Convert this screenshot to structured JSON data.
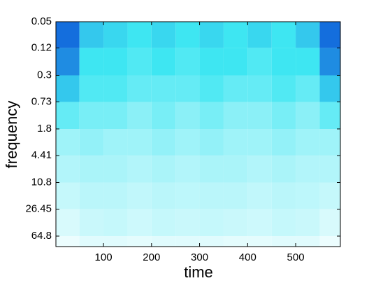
{
  "chart_data": {
    "type": "heatmap",
    "xlabel": "time",
    "ylabel": "frequency",
    "xlim": [
      1,
      593
    ],
    "xticks": [
      100,
      200,
      300,
      400,
      500
    ],
    "ylim": [
      0.05,
      92
    ],
    "yscale": "log",
    "y_reversed": true,
    "yticks": [
      0.05,
      0.12,
      0.3,
      0.73,
      1.8,
      4.41,
      10.8,
      26.45,
      64.8
    ],
    "x_edges": [
      1,
      50,
      100,
      150,
      200,
      250,
      300,
      350,
      400,
      450,
      500,
      550,
      593
    ],
    "y_edges": [
      0.05,
      0.12,
      0.3,
      0.73,
      1.8,
      4.41,
      10.8,
      26.45,
      64.8,
      92
    ],
    "clim": [
      0,
      1
    ],
    "colormap": [
      "#ffffff",
      "#3ee6f2",
      "#0a50d8"
    ],
    "values": [
      [
        0.9,
        0.6,
        0.55,
        0.5,
        0.55,
        0.5,
        0.55,
        0.5,
        0.55,
        0.5,
        0.6,
        0.9
      ],
      [
        0.8,
        0.5,
        0.5,
        0.45,
        0.5,
        0.45,
        0.5,
        0.5,
        0.45,
        0.5,
        0.5,
        0.8
      ],
      [
        0.6,
        0.45,
        0.45,
        0.4,
        0.4,
        0.4,
        0.45,
        0.4,
        0.4,
        0.45,
        0.4,
        0.6
      ],
      [
        0.4,
        0.35,
        0.35,
        0.3,
        0.35,
        0.3,
        0.35,
        0.3,
        0.3,
        0.35,
        0.3,
        0.4
      ],
      [
        0.25,
        0.28,
        0.25,
        0.25,
        0.28,
        0.25,
        0.28,
        0.25,
        0.25,
        0.28,
        0.25,
        0.25
      ],
      [
        0.2,
        0.22,
        0.22,
        0.2,
        0.22,
        0.2,
        0.22,
        0.22,
        0.2,
        0.22,
        0.2,
        0.2
      ],
      [
        0.15,
        0.18,
        0.18,
        0.16,
        0.18,
        0.17,
        0.18,
        0.18,
        0.16,
        0.18,
        0.17,
        0.15
      ],
      [
        0.1,
        0.14,
        0.15,
        0.13,
        0.15,
        0.14,
        0.15,
        0.14,
        0.13,
        0.15,
        0.14,
        0.1
      ],
      [
        0.05,
        0.08,
        0.08,
        0.07,
        0.08,
        0.08,
        0.08,
        0.07,
        0.07,
        0.08,
        0.08,
        0.05
      ]
    ]
  }
}
